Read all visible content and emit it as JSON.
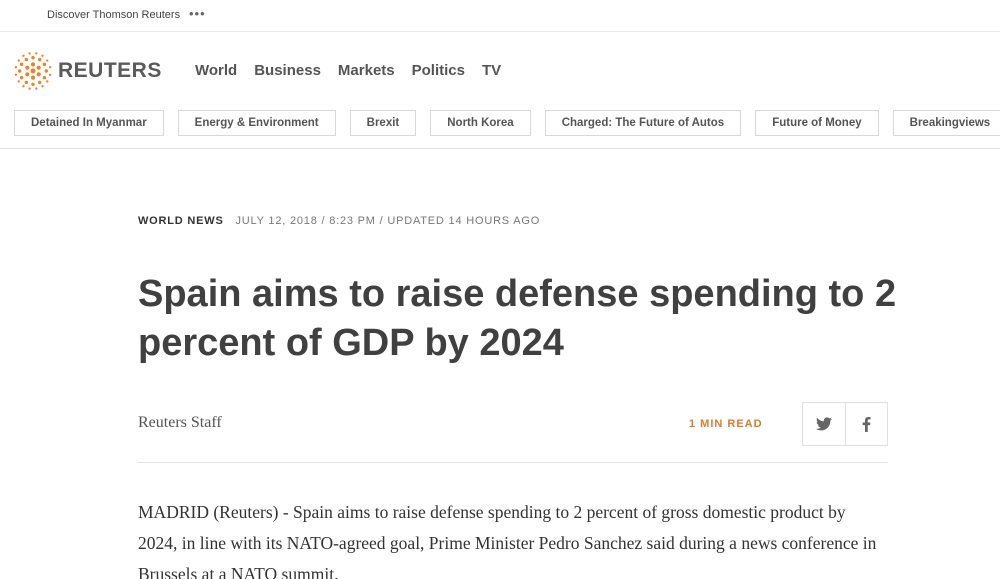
{
  "topbar": {
    "discover_label": "Discover Thomson Reuters",
    "more_label": "•••"
  },
  "logo": {
    "wordmark": "REUTERS",
    "accent_color": "#f5801f"
  },
  "nav": {
    "items": [
      "World",
      "Business",
      "Markets",
      "Politics",
      "TV"
    ]
  },
  "topics": [
    "Detained In Myanmar",
    "Energy & Environment",
    "Brexit",
    "North Korea",
    "Charged: The Future of Autos",
    "Future of Money",
    "Breakingviews"
  ],
  "article": {
    "section": "WORLD NEWS",
    "dateline": "JULY 12, 2018 / 8:23 PM / UPDATED 14 HOURS AGO",
    "headline": "Spain aims to raise defense spending to 2 percent of GDP by 2024",
    "author": "Reuters Staff",
    "read_time": "1 MIN READ",
    "share": {
      "twitter_icon": "twitter-icon",
      "facebook_icon": "facebook-icon"
    },
    "body": "MADRID (Reuters) - Spain aims to raise defense spending to 2 percent of gross domestic product by 2024, in line with its NATO-agreed goal, Prime Minister Pedro Sanchez said during a news conference in Brussels at a NATO summit."
  }
}
